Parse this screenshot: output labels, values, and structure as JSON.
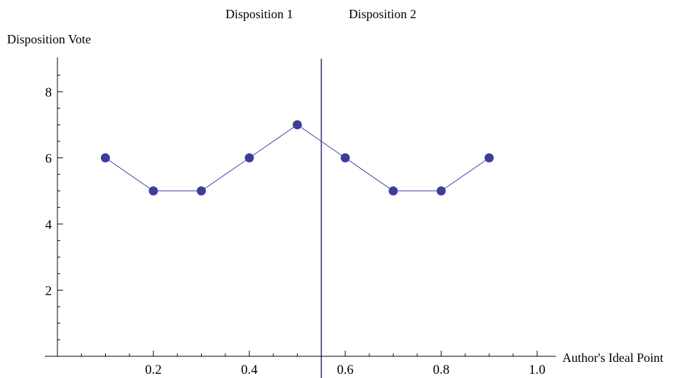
{
  "chart_data": {
    "type": "line",
    "title": "",
    "xlabel": "Author's Ideal Point",
    "ylabel": "Disposition Vote",
    "xlim": [
      0,
      1.0
    ],
    "ylim": [
      0,
      9
    ],
    "x_ticks": [
      0.2,
      0.4,
      0.6,
      0.8,
      1.0
    ],
    "x_tick_labels": [
      "0.2",
      "0.4",
      "0.6",
      "0.8",
      "1.0"
    ],
    "y_ticks": [
      2,
      4,
      6,
      8
    ],
    "y_tick_labels": [
      "2",
      "4",
      "6",
      "8"
    ],
    "grid": false,
    "legend": "none",
    "series": [
      {
        "x": [
          0.1,
          0.2,
          0.3,
          0.4,
          0.5,
          0.6,
          0.7,
          0.8,
          0.9
        ],
        "values": [
          6,
          5,
          5,
          6,
          7,
          6,
          5,
          5,
          6
        ],
        "color": "#3d3d9e",
        "markers": true
      }
    ],
    "vertical_line": {
      "x": 0.55,
      "color": "#1a1a8c"
    },
    "annotations": {
      "left_label": "Disposition 1",
      "right_label": "Disposition 2"
    }
  }
}
